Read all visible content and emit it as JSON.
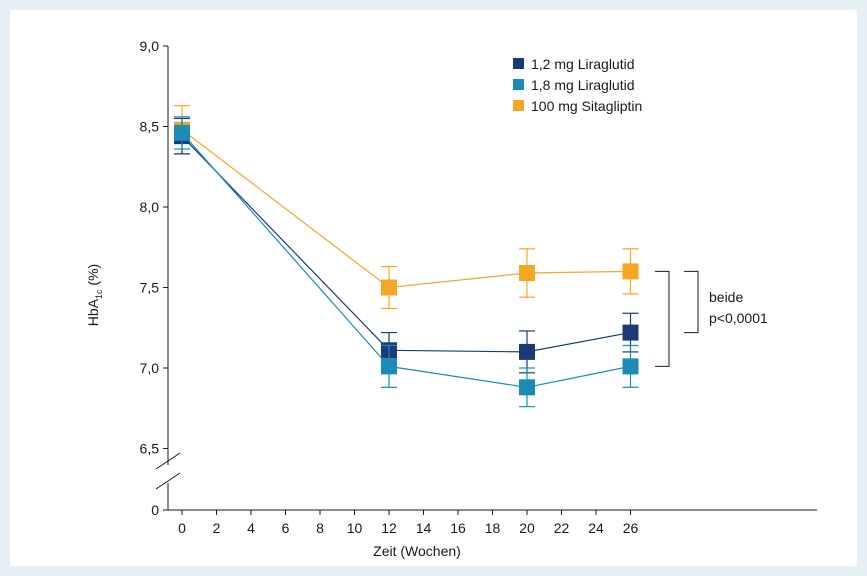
{
  "chart_data": {
    "type": "line",
    "title": "",
    "xlabel": "Zeit (Wochen)",
    "ylabel": {
      "main": "HbA",
      "sub": "1c",
      "unit": " (%)"
    },
    "x_ticks": [
      "0",
      "2",
      "4",
      "6",
      "8",
      "10",
      "12",
      "14",
      "16",
      "18",
      "20",
      "22",
      "24",
      "26"
    ],
    "y_ticks": [
      "6,5",
      "7,0",
      "7,5",
      "8,0",
      "8,5",
      "9,0"
    ],
    "y_zero_label": "0",
    "ylim": [
      6.5,
      9.0
    ],
    "xlim": [
      0,
      26
    ],
    "axis_break": true,
    "grid": false,
    "legend_position": "top-right",
    "series": [
      {
        "name": "1,2 mg Liraglutid",
        "color": "#1b3a7a",
        "x": [
          0,
          12,
          20,
          26
        ],
        "y": [
          8.44,
          7.11,
          7.1,
          7.22
        ],
        "err": [
          0.11,
          0.11,
          0.13,
          0.12
        ]
      },
      {
        "name": "1,8 mg Liraglutid",
        "color": "#1a8cb5",
        "x": [
          0,
          12,
          20,
          26
        ],
        "y": [
          8.46,
          7.01,
          6.88,
          7.01
        ],
        "err": [
          0.1,
          0.13,
          0.12,
          0.13
        ]
      },
      {
        "name": "100 mg Sitagliptin",
        "color": "#f5a623",
        "x": [
          0,
          12,
          20,
          26
        ],
        "y": [
          8.48,
          7.5,
          7.59,
          7.6
        ],
        "err": [
          0.15,
          0.13,
          0.15,
          0.14
        ]
      }
    ],
    "annotation": {
      "line1": "beide",
      "line2": "p<0,0001"
    }
  }
}
